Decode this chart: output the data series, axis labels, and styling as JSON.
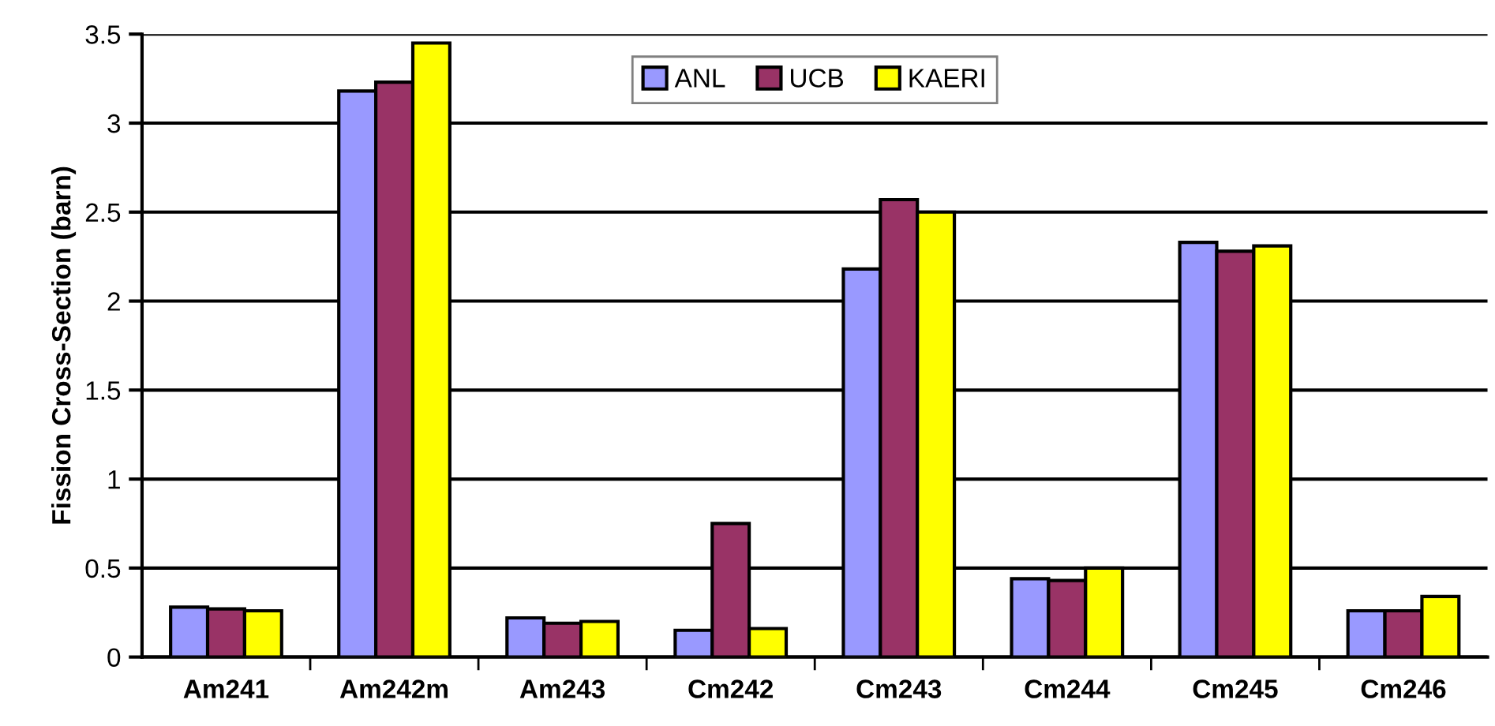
{
  "chart_data": {
    "type": "bar",
    "ylabel": "Fission Cross-Section (barn)",
    "categories": [
      "Am241",
      "Am242m",
      "Am243",
      "Cm242",
      "Cm243",
      "Cm244",
      "Cm245",
      "Cm246"
    ],
    "series": [
      {
        "name": "ANL",
        "color": "#9999ff",
        "values": [
          0.28,
          3.18,
          0.22,
          0.15,
          2.18,
          0.44,
          2.33,
          0.26
        ]
      },
      {
        "name": "UCB",
        "color": "#993366",
        "values": [
          0.27,
          3.23,
          0.19,
          0.75,
          2.57,
          0.43,
          2.28,
          0.26
        ]
      },
      {
        "name": "KAERI",
        "color": "#ffff00",
        "values": [
          0.26,
          3.45,
          0.2,
          0.16,
          2.5,
          0.5,
          2.31,
          0.34
        ]
      }
    ],
    "ylim": [
      0,
      3.5
    ],
    "yticks": [
      0,
      0.5,
      1,
      1.5,
      2,
      2.5,
      3,
      3.5
    ],
    "grid": "y",
    "legend": "top"
  }
}
